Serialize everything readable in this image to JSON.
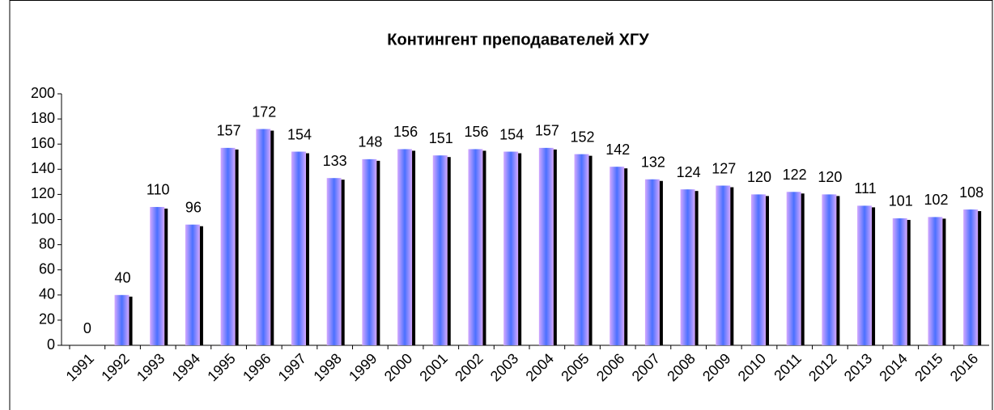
{
  "chart_data": {
    "type": "bar",
    "title": "Контингент преподавателей ХГУ",
    "categories": [
      "1991",
      "1992",
      "1993",
      "1994",
      "1995",
      "1996",
      "1997",
      "1998",
      "1999",
      "2000",
      "2001",
      "2002",
      "2003",
      "2004",
      "2005",
      "2006",
      "2007",
      "2008",
      "2009",
      "2010",
      "2011",
      "2012",
      "2013",
      "2014",
      "2015",
      "2016"
    ],
    "values": [
      0,
      40,
      110,
      96,
      157,
      172,
      154,
      133,
      148,
      156,
      151,
      156,
      154,
      157,
      152,
      142,
      132,
      124,
      127,
      120,
      122,
      120,
      111,
      101,
      102,
      108
    ],
    "color": "#cc99ff",
    "ylim": [
      0,
      200
    ],
    "yticks": [
      0,
      20,
      40,
      60,
      80,
      100,
      120,
      140,
      160,
      180,
      200
    ],
    "grid": false
  }
}
